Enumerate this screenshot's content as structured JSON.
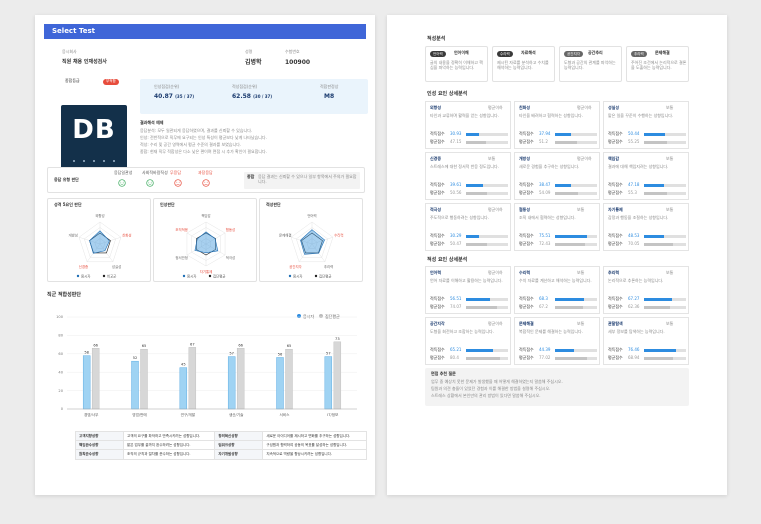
{
  "header": {
    "brand": "Select Test"
  },
  "info": {
    "company_label": "응시회사",
    "company": "직원 채용 인재성검사",
    "name_label": "성명",
    "name": "김병학",
    "id_label": "수험번호",
    "id": "100900"
  },
  "grade": {
    "label": "종합등급",
    "badge": "부적합",
    "value": "DB"
  },
  "scores": [
    {
      "label": "인성점검(순위)",
      "value": "40.87",
      "rank": "(35 / 37)"
    },
    {
      "label": "적성점검(순위)",
      "value": "62.58",
      "rank": "(30 / 37)"
    },
    {
      "label": "적합판정상",
      "value": "M8"
    }
  ],
  "summary": {
    "title": "결과해석 예제",
    "lines": [
      "응답분석: 모두 일관되게 응답하였으며, 결과를 신뢰할 수 있습니다.",
      "인성: 전반적으로 직무에 요구되는 인성 특성이 평균보다 낮게 나타났습니다.",
      "적성: 수리 및 공간 영역에서 평균 수준의 결과를 보였습니다.",
      "종합: 현재 직무 적합성은 다소 낮은 편이며 면접 시 추가 확인이 필요합니다."
    ]
  },
  "response": {
    "title": "응답 유형 판단",
    "items": [
      {
        "label": "응답일관성",
        "status": "good"
      },
      {
        "label": "사회적바람직성",
        "status": "good"
      },
      {
        "label": "무응답",
        "status": "bad"
      },
      {
        "label": "과장응답",
        "status": "bad"
      }
    ],
    "note_title": "종합",
    "note": "응답 결과는 신뢰할 수 있으나 일부 항목에서 주의가 필요합니다."
  },
  "radars": [
    {
      "title": "성격 5요인 판단",
      "axes": [
        "외향성",
        "친화성",
        "성실성",
        "신경증",
        "개방성"
      ],
      "series": [
        {
          "name": "응시자",
          "values": [
            60,
            45,
            38,
            52,
            50
          ]
        },
        {
          "name": "비교군",
          "values": [
            50,
            50,
            50,
            50,
            50
          ]
        }
      ]
    },
    {
      "title": "인성판단",
      "axes": [
        "책임감",
        "협동성",
        "적극성",
        "자기통제",
        "정서안정",
        "조직적응"
      ],
      "series": [
        {
          "name": "응시자",
          "values": [
            55,
            48,
            62,
            40,
            58,
            46
          ]
        },
        {
          "name": "집단평균",
          "values": [
            50,
            50,
            50,
            50,
            50,
            50
          ]
        }
      ]
    },
    {
      "title": "적성판단",
      "axes": [
        "언어력",
        "수리력",
        "추리력",
        "공간지각",
        "문제해결"
      ],
      "series": [
        {
          "name": "응시자",
          "values": [
            65,
            60,
            52,
            58,
            55
          ]
        },
        {
          "name": "집단평균",
          "values": [
            50,
            50,
            50,
            50,
            50
          ]
        }
      ]
    }
  ],
  "chart_data": {
    "type": "bar",
    "title": "직군 적합성판단",
    "categories": [
      "경영/사무",
      "영업/판매",
      "연구/개발",
      "생산/기술",
      "서비스",
      "IT/정보"
    ],
    "series": [
      {
        "name": "응시자",
        "values": [
          58,
          52,
          45,
          57,
          56,
          57
        ]
      },
      {
        "name": "집단평균",
        "values": [
          66,
          65,
          67,
          66,
          65,
          73
        ]
      }
    ],
    "ylim": [
      0,
      100
    ],
    "yticks": [
      0,
      20,
      40,
      60,
      80,
      100
    ],
    "legend": "top-right",
    "colors": {
      "a": "#9fd3f3",
      "b": "#d7d7d7"
    }
  },
  "p1table": [
    [
      "고객지향성향",
      "고객의 요구를 파악하고 만족시키려는 성향입니다.",
      "창의혁신성향",
      "새로운 아이디어를 제시하고 변화를 추구하는 성향입니다."
    ],
    [
      "책임완수성향",
      "맡은 업무를 끝까지 완수하려는 성향입니다.",
      "팀워크성향",
      "구성원과 협력하여 공동의 목표를 달성하는 성향입니다."
    ],
    [
      "원칙준수성향",
      "조직의 규칙과 절차를 준수하는 성향입니다.",
      "자기개발성향",
      "지속적으로 역량을 향상시키려는 성향입니다."
    ]
  ],
  "p2": {
    "sec1": "적성분석",
    "cards": [
      {
        "tag": "언어력",
        "title": "언어이해",
        "text": "글의 내용을 정확히 이해하고 핵심을 파악하는 능력입니다."
      },
      {
        "tag": "수리력",
        "title": "자료해석",
        "text": "제시된 자료를 분석하고 수치를 해석하는 능력입니다."
      },
      {
        "tag": "공간지각",
        "title": "공간추리",
        "text": "도형과 공간의 관계를 파악하는 능력입니다."
      },
      {
        "tag": "추리력",
        "title": "문제해결",
        "text": "주어진 조건에서 논리적으로 결론을 도출하는 능력입니다."
      }
    ],
    "sec2": "인성 요인 상세분석",
    "detail": [
      {
        "name": "외향성",
        "grade": "평균이하",
        "desc": "타인과 교류하며 활력을 얻는 성향입니다.",
        "a": 30.93,
        "b": 47.15
      },
      {
        "name": "친화성",
        "grade": "평균이하",
        "desc": "타인을 배려하고 협력하는 성향입니다.",
        "a": 37.94,
        "b": 51.2
      },
      {
        "name": "성실성",
        "grade": "보통",
        "desc": "맡은 일을 꾸준히 수행하는 성향입니다.",
        "a": 50.44,
        "b": 55.25
      },
      {
        "name": "신경증",
        "grade": "보통",
        "desc": "스트레스에 대한 정서적 반응 정도입니다.",
        "a": 39.61,
        "b": 50.56
      },
      {
        "name": "개방성",
        "grade": "평균이하",
        "desc": "새로운 경험을 추구하는 성향입니다.",
        "a": 38.47,
        "b": 54.09
      },
      {
        "name": "책임감",
        "grade": "보통",
        "desc": "결과에 대해 책임지려는 성향입니다.",
        "a": 47.18,
        "b": 55.3
      },
      {
        "name": "적극성",
        "grade": "평균이하",
        "desc": "주도적으로 행동하려는 성향입니다.",
        "a": 30.29,
        "b": 50.47
      },
      {
        "name": "협동성",
        "grade": "보통",
        "desc": "조직 내에서 협력하는 성향입니다.",
        "a": 75.51,
        "b": 72.43
      },
      {
        "name": "자기통제",
        "grade": "보통",
        "desc": "감정과 행동을 조절하는 성향입니다.",
        "a": 48.53,
        "b": 70.05
      }
    ],
    "sec3": "적성 요인 상세분석",
    "apt": [
      {
        "name": "언어력",
        "grade": "평균이하",
        "desc": "언어 자료를 이해하고 활용하는 능력입니다.",
        "a": 56.51,
        "b": 74.07
      },
      {
        "name": "수리력",
        "grade": "보통",
        "desc": "수치 자료를 계산하고 해석하는 능력입니다.",
        "a": 68.3,
        "b": 67.2
      },
      {
        "name": "추리력",
        "grade": "보통",
        "desc": "논리적으로 추론하는 능력입니다.",
        "a": 67.27,
        "b": 62.36
      },
      {
        "name": "공간지각",
        "grade": "평균이하",
        "desc": "도형을 회전하고 조합하는 능력입니다.",
        "a": 65.21,
        "b": 80.4
      },
      {
        "name": "문제해결",
        "grade": "보통",
        "desc": "복합적인 문제를 해결하는 능력입니다.",
        "a": 44.39,
        "b": 77.02
      },
      {
        "name": "관찰탐색",
        "grade": "보통",
        "desc": "세부 정보를 탐색하는 능력입니다.",
        "a": 76.46,
        "b": 68.94
      }
    ],
    "score_label": "적득점수",
    "avg_label": "평균점수",
    "q_title": "면접 추천 질문",
    "questions": [
      "업무 중 예상치 못한 문제가 발생했을 때 어떻게 해결하였는지 말씀해 주십시오.",
      "팀원과 의견 충돌이 있었던 경험과 이를 해결한 방법을 설명해 주십시오.",
      "스트레스 상황에서 본인만의 관리 방법이 있다면 말씀해 주십시오."
    ]
  }
}
